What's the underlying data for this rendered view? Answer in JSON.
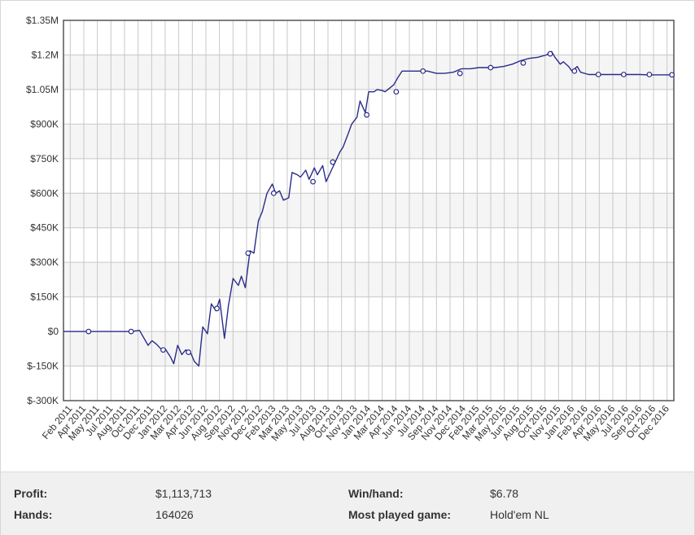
{
  "chart_data": {
    "type": "line",
    "y_ticks": [
      "$1.35M",
      "$1.2M",
      "$1.05M",
      "$900K",
      "$750K",
      "$600K",
      "$450K",
      "$300K",
      "$150K",
      "$0",
      "$-150K",
      "$-300K"
    ],
    "ylim": [
      -300000,
      1350000
    ],
    "x_ticks": [
      "Feb 2011",
      "Apr 2011",
      "May 2011",
      "Jul 2011",
      "Aug 2011",
      "Oct 2011",
      "Dec 2011",
      "Jan 2012",
      "Mar 2012",
      "Apr 2012",
      "Jun 2012",
      "Aug 2012",
      "Sep 2012",
      "Nov 2012",
      "Dec 2012",
      "Feb 2013",
      "Mar 2013",
      "May 2013",
      "Jul 2013",
      "Aug 2013",
      "Oct 2013",
      "Nov 2013",
      "Jan 2014",
      "Mar 2014",
      "Apr 2014",
      "Jun 2014",
      "Jul 2014",
      "Sep 2014",
      "Nov 2014",
      "Dec 2014",
      "Feb 2015",
      "Mar 2015",
      "May 2015",
      "Jun 2015",
      "Aug 2015",
      "Oct 2015",
      "Nov 2015",
      "Jan 2016",
      "Feb 2016",
      "Apr 2016",
      "May 2016",
      "Jul 2016",
      "Sep 2016",
      "Oct 2016",
      "Dec 2016"
    ],
    "line_color": "#2b2b8a",
    "grid": true,
    "series": [
      {
        "x": [
          "2011-01-01",
          "2011-03-01",
          "2011-05-01",
          "2011-07-01",
          "2011-09-01",
          "2011-10-01",
          "2011-11-01",
          "2011-11-15",
          "2011-12-01",
          "2011-12-20",
          "2012-01-01",
          "2012-01-20",
          "2012-02-01",
          "2012-02-15",
          "2012-03-01",
          "2012-03-15",
          "2012-04-01",
          "2012-04-15",
          "2012-05-01",
          "2012-05-15",
          "2012-06-01",
          "2012-06-15",
          "2012-07-01",
          "2012-07-15",
          "2012-08-01",
          "2012-08-15",
          "2012-09-01",
          "2012-09-20",
          "2012-10-01",
          "2012-10-15",
          "2012-11-01",
          "2012-11-15",
          "2012-12-01",
          "2012-12-15",
          "2013-01-01",
          "2013-01-20",
          "2013-02-01",
          "2013-02-15",
          "2013-03-01",
          "2013-03-20",
          "2013-04-01",
          "2013-04-20",
          "2013-05-01",
          "2013-05-20",
          "2013-06-01",
          "2013-06-20",
          "2013-07-01",
          "2013-07-20",
          "2013-08-01",
          "2013-08-20",
          "2013-09-01",
          "2013-09-20",
          "2013-10-01",
          "2013-10-20",
          "2013-11-01",
          "2013-11-20",
          "2013-12-01",
          "2013-12-20",
          "2014-01-01",
          "2014-01-20",
          "2014-02-01",
          "2014-02-20",
          "2014-03-01",
          "2014-04-01",
          "2014-04-15",
          "2014-05-01",
          "2014-06-01",
          "2014-07-01",
          "2014-08-01",
          "2014-09-01",
          "2014-10-01",
          "2014-11-01",
          "2014-12-01",
          "2015-01-01",
          "2015-02-01",
          "2015-03-01",
          "2015-04-01",
          "2015-05-01",
          "2015-06-01",
          "2015-07-01",
          "2015-08-01",
          "2015-09-01",
          "2015-10-01",
          "2015-10-20",
          "2015-11-01",
          "2015-11-20",
          "2015-12-01",
          "2015-12-20",
          "2016-01-01",
          "2016-01-20",
          "2016-02-01",
          "2016-03-01",
          "2016-04-01",
          "2016-05-01",
          "2016-06-01",
          "2016-07-01",
          "2016-08-01",
          "2016-09-01",
          "2016-10-01",
          "2016-11-01",
          "2016-12-01",
          "2017-01-01"
        ],
        "y": [
          0,
          0,
          0,
          0,
          0,
          5000,
          -60000,
          -40000,
          -55000,
          -80000,
          -75000,
          -110000,
          -140000,
          -60000,
          -100000,
          -80000,
          -90000,
          -130000,
          -150000,
          20000,
          -10000,
          120000,
          90000,
          140000,
          -30000,
          110000,
          230000,
          200000,
          240000,
          190000,
          350000,
          340000,
          480000,
          520000,
          600000,
          640000,
          600000,
          610000,
          570000,
          580000,
          690000,
          680000,
          670000,
          700000,
          660000,
          710000,
          680000,
          720000,
          650000,
          700000,
          730000,
          780000,
          800000,
          860000,
          900000,
          930000,
          1000000,
          950000,
          1040000,
          1040000,
          1050000,
          1045000,
          1040000,
          1070000,
          1100000,
          1130000,
          1130000,
          1130000,
          1130000,
          1120000,
          1120000,
          1125000,
          1140000,
          1140000,
          1145000,
          1145000,
          1145000,
          1150000,
          1160000,
          1175000,
          1185000,
          1190000,
          1200000,
          1215000,
          1190000,
          1160000,
          1170000,
          1150000,
          1130000,
          1150000,
          1125000,
          1115000,
          1115000,
          1115000,
          1115000,
          1115000,
          1115000,
          1115000,
          1113713,
          1113713,
          1113713,
          1113713
        ]
      }
    ],
    "markers": [
      {
        "x": "2011-04-01",
        "y": 0
      },
      {
        "x": "2011-09-01",
        "y": 0
      },
      {
        "x": "2011-12-25",
        "y": -80000
      },
      {
        "x": "2012-03-25",
        "y": -90000
      },
      {
        "x": "2012-07-05",
        "y": 100000
      },
      {
        "x": "2012-10-25",
        "y": 340000
      },
      {
        "x": "2013-01-25",
        "y": 600000
      },
      {
        "x": "2013-06-15",
        "y": 650000
      },
      {
        "x": "2013-08-25",
        "y": 735000
      },
      {
        "x": "2013-12-25",
        "y": 940000
      },
      {
        "x": "2014-04-10",
        "y": 1040000
      },
      {
        "x": "2014-07-15",
        "y": 1130000
      },
      {
        "x": "2014-11-25",
        "y": 1120000
      },
      {
        "x": "2015-03-15",
        "y": 1145000
      },
      {
        "x": "2015-07-10",
        "y": 1165000
      },
      {
        "x": "2015-10-15",
        "y": 1205000
      },
      {
        "x": "2016-01-10",
        "y": 1130000
      },
      {
        "x": "2016-04-05",
        "y": 1115000
      },
      {
        "x": "2016-07-05",
        "y": 1115000
      },
      {
        "x": "2016-10-05",
        "y": 1115000
      },
      {
        "x": "2016-12-25",
        "y": 1113713
      }
    ]
  },
  "stats": {
    "profit_label": "Profit:",
    "profit_value": "$1,113,713",
    "hands_label": "Hands:",
    "hands_value": "164026",
    "winhand_label": "Win/hand:",
    "winhand_value": "$6.78",
    "game_label": "Most played game:",
    "game_value": "Hold'em NL"
  }
}
